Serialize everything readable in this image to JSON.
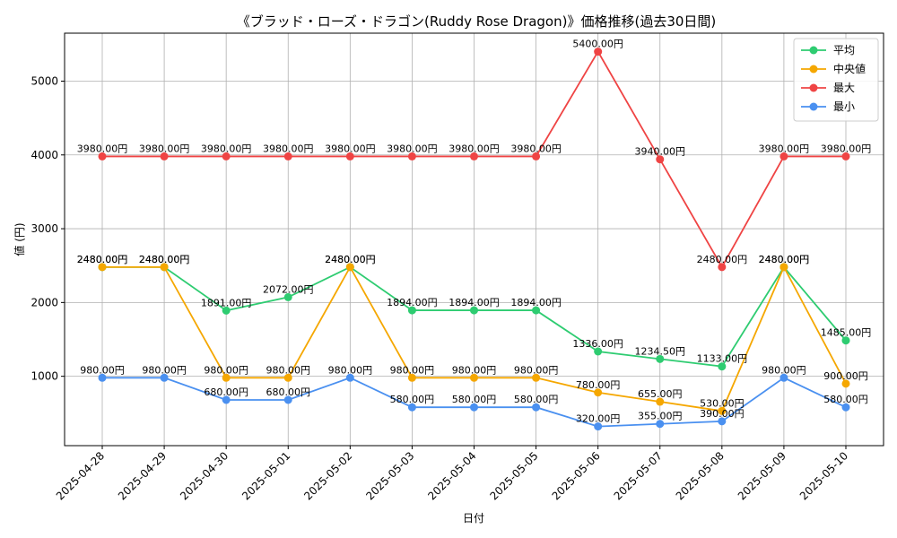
{
  "chart_data": {
    "type": "line",
    "title": "《ブラッド・ローズ・ドラゴン(Ruddy Rose Dragon)》価格推移(過去30日間)",
    "xlabel": "日付",
    "ylabel": "値 (円)",
    "ylim": [
      60,
      5650
    ],
    "yticks": [
      1000,
      2000,
      3000,
      4000,
      5000
    ],
    "grid": true,
    "legend_position": "top-right",
    "value_suffix": "円",
    "categories": [
      "2025-04-28",
      "2025-04-29",
      "2025-04-30",
      "2025-05-01",
      "2025-05-02",
      "2025-05-03",
      "2025-05-04",
      "2025-05-05",
      "2025-05-06",
      "2025-05-07",
      "2025-05-08",
      "2025-05-09",
      "2025-05-10"
    ],
    "series": [
      {
        "name": "平均",
        "color": "#2ecc71",
        "values": [
          2480,
          2480,
          1891,
          2072,
          2480,
          1894,
          1894,
          1894,
          1336,
          1234.5,
          1133,
          2480,
          1485
        ]
      },
      {
        "name": "中央値",
        "color": "#f5a700",
        "values": [
          2480,
          2480,
          980,
          980,
          2480,
          980,
          980,
          980,
          780,
          655,
          530,
          2480,
          900
        ]
      },
      {
        "name": "最大",
        "color": "#ef4444",
        "values": [
          3980,
          3980,
          3980,
          3980,
          3980,
          3980,
          3980,
          3980,
          5400,
          3940,
          2480,
          3980,
          3980
        ]
      },
      {
        "name": "最小",
        "color": "#4a90f0",
        "values": [
          980,
          980,
          680,
          680,
          980,
          580,
          580,
          580,
          320,
          355,
          390,
          980,
          580
        ]
      }
    ]
  }
}
